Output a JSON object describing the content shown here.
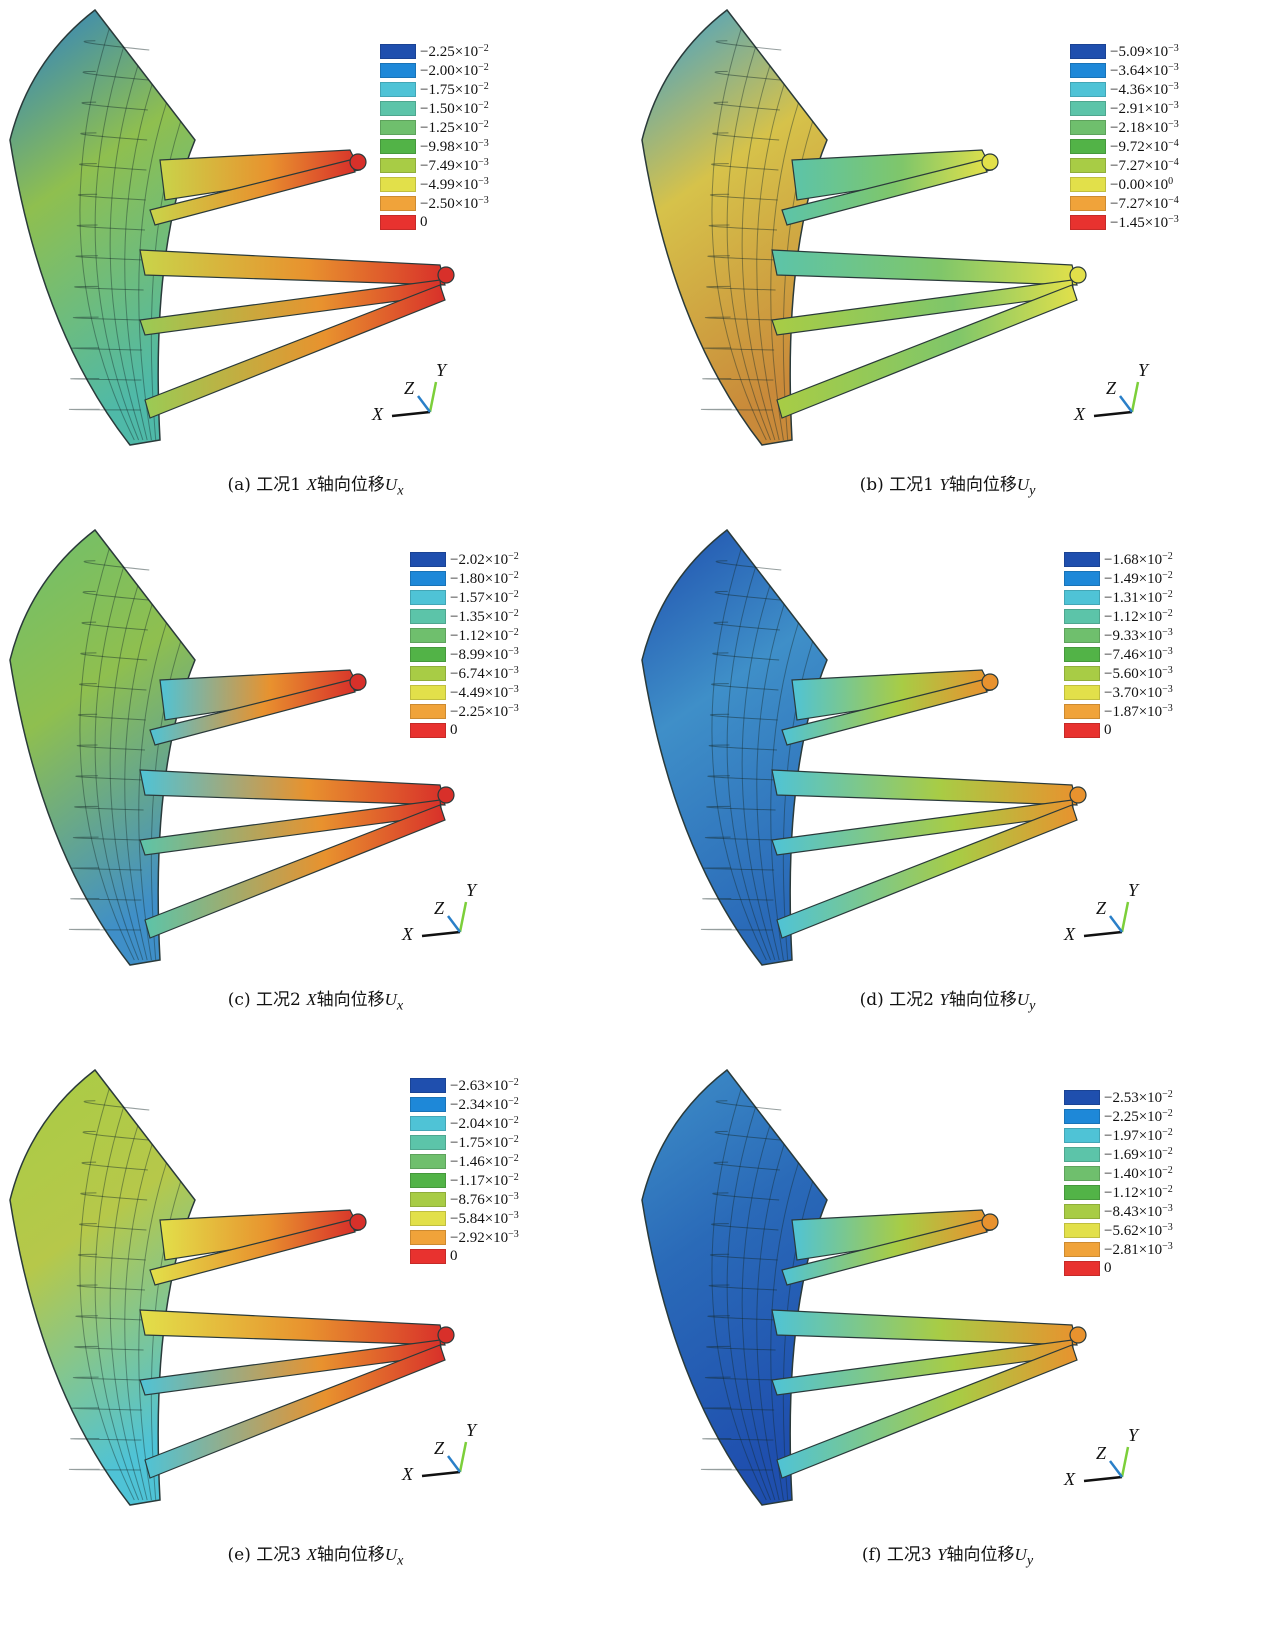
{
  "panels": [
    {
      "id": "a",
      "caption_prefix": "(a) 工况1 ",
      "caption_axis": "X",
      "caption_text": "轴向位移",
      "caption_sym": "U",
      "caption_sub": "x",
      "legend": [
        {
          "color": "#1f4fae",
          "label": "−2.25×10",
          "exp": "−2"
        },
        {
          "color": "#1e88d8",
          "label": "−2.00×10",
          "exp": "−2"
        },
        {
          "color": "#4fc3d6",
          "label": "−1.75×10",
          "exp": "−2"
        },
        {
          "color": "#5cc4a9",
          "label": "−1.50×10",
          "exp": "−2"
        },
        {
          "color": "#6fbf6d",
          "label": "−1.25×10",
          "exp": "−2"
        },
        {
          "color": "#52b347",
          "label": "−9.98×10",
          "exp": "−3"
        },
        {
          "color": "#a8cc45",
          "label": "−7.49×10",
          "exp": "−3"
        },
        {
          "color": "#e2e04a",
          "label": "−4.99×10",
          "exp": "−3"
        },
        {
          "color": "#f0a33a",
          "label": "−2.50×10",
          "exp": "−3"
        },
        {
          "color": "#e8322f",
          "label": "0",
          "exp": ""
        }
      ],
      "model_colors": {
        "shell": "#8fbf4f",
        "shell2": "#4fb9a8",
        "shell_top": "#2a7fc8",
        "arm_tip": "#d8302a",
        "arm_mid": "#e8922e",
        "arm_base": "#c9d44a",
        "arm_low": "#9acb55"
      },
      "triad": {
        "x": "X",
        "y": "Y",
        "z": "Z"
      }
    },
    {
      "id": "b",
      "caption_prefix": "(b) 工况1 ",
      "caption_axis": "Y",
      "caption_text": "轴向位移",
      "caption_sym": "U",
      "caption_sub": "y",
      "legend": [
        {
          "color": "#1f4fae",
          "label": "−5.09×10",
          "exp": "−3"
        },
        {
          "color": "#1e88d8",
          "label": "−3.64×10",
          "exp": "−3"
        },
        {
          "color": "#4fc3d6",
          "label": "−4.36×10",
          "exp": "−3"
        },
        {
          "color": "#5cc4a9",
          "label": "−2.91×10",
          "exp": "−3"
        },
        {
          "color": "#6fbf6d",
          "label": "−2.18×10",
          "exp": "−3"
        },
        {
          "color": "#52b347",
          "label": "−9.72×10",
          "exp": "−4"
        },
        {
          "color": "#a8cc45",
          "label": "−7.27×10",
          "exp": "−4"
        },
        {
          "color": "#e2e04a",
          "label": "−0.00×10",
          "exp": "0"
        },
        {
          "color": "#f0a33a",
          "label": "−7.27×10",
          "exp": "−4"
        },
        {
          "color": "#e8322f",
          "label": "−1.45×10",
          "exp": "−3"
        }
      ],
      "model_colors": {
        "shell": "#d6c24a",
        "shell2": "#c98a3a",
        "shell_top": "#3c9fd0",
        "arm_tip": "#e2e04a",
        "arm_mid": "#7fc66a",
        "arm_base": "#5cc4a9",
        "arm_low": "#a8cc45"
      },
      "triad": {
        "x": "X",
        "y": "Y",
        "z": "Z"
      }
    },
    {
      "id": "c",
      "caption_prefix": "(c) 工况2 ",
      "caption_axis": "X",
      "caption_text": "轴向位移",
      "caption_sym": "U",
      "caption_sub": "x",
      "legend": [
        {
          "color": "#1f4fae",
          "label": "−2.02×10",
          "exp": "−2"
        },
        {
          "color": "#1e88d8",
          "label": "−1.80×10",
          "exp": "−2"
        },
        {
          "color": "#4fc3d6",
          "label": "−1.57×10",
          "exp": "−2"
        },
        {
          "color": "#5cc4a9",
          "label": "−1.35×10",
          "exp": "−2"
        },
        {
          "color": "#6fbf6d",
          "label": "−1.12×10",
          "exp": "−2"
        },
        {
          "color": "#52b347",
          "label": "−8.99×10",
          "exp": "−3"
        },
        {
          "color": "#a8cc45",
          "label": "−6.74×10",
          "exp": "−3"
        },
        {
          "color": "#e2e04a",
          "label": "−4.49×10",
          "exp": "−3"
        },
        {
          "color": "#f0a33a",
          "label": "−2.25×10",
          "exp": "−3"
        },
        {
          "color": "#e8322f",
          "label": "0",
          "exp": ""
        }
      ],
      "model_colors": {
        "shell": "#8fbf4f",
        "shell2": "#3f8fc8",
        "shell_top": "#6fbf6d",
        "arm_tip": "#d8302a",
        "arm_mid": "#e8922e",
        "arm_base": "#4fc3d6",
        "arm_low": "#5cc4a9"
      },
      "triad": {
        "x": "X",
        "y": "Y",
        "z": "Z"
      }
    },
    {
      "id": "d",
      "caption_prefix": "(d) 工况2 ",
      "caption_axis": "Y",
      "caption_text": "轴向位移",
      "caption_sym": "U",
      "caption_sub": "y",
      "legend": [
        {
          "color": "#1f4fae",
          "label": "−1.68×10",
          "exp": "−2"
        },
        {
          "color": "#1e88d8",
          "label": "−1.49×10",
          "exp": "−2"
        },
        {
          "color": "#4fc3d6",
          "label": "−1.31×10",
          "exp": "−2"
        },
        {
          "color": "#5cc4a9",
          "label": "−1.12×10",
          "exp": "−2"
        },
        {
          "color": "#6fbf6d",
          "label": "−9.33×10",
          "exp": "−3"
        },
        {
          "color": "#52b347",
          "label": "−7.46×10",
          "exp": "−3"
        },
        {
          "color": "#a8cc45",
          "label": "−5.60×10",
          "exp": "−3"
        },
        {
          "color": "#e2e04a",
          "label": "−3.70×10",
          "exp": "−3"
        },
        {
          "color": "#f0a33a",
          "label": "−1.87×10",
          "exp": "−3"
        },
        {
          "color": "#e8322f",
          "label": "0",
          "exp": ""
        }
      ],
      "model_colors": {
        "shell": "#3f8fc8",
        "shell2": "#2a6ab8",
        "shell_top": "#1f4fae",
        "arm_tip": "#e8922e",
        "arm_mid": "#a8cc45",
        "arm_base": "#4fc3d6",
        "arm_low": "#4fc3d6"
      },
      "triad": {
        "x": "X",
        "y": "Y",
        "z": "Z"
      }
    },
    {
      "id": "e",
      "caption_prefix": "(e) 工况3 ",
      "caption_axis": "X",
      "caption_text": "轴向位移",
      "caption_sym": "U",
      "caption_sub": "x",
      "legend": [
        {
          "color": "#1f4fae",
          "label": "−2.63×10",
          "exp": "−2"
        },
        {
          "color": "#1e88d8",
          "label": "−2.34×10",
          "exp": "−2"
        },
        {
          "color": "#4fc3d6",
          "label": "−2.04×10",
          "exp": "−2"
        },
        {
          "color": "#5cc4a9",
          "label": "−1.75×10",
          "exp": "−2"
        },
        {
          "color": "#6fbf6d",
          "label": "−1.46×10",
          "exp": "−2"
        },
        {
          "color": "#52b347",
          "label": "−1.17×10",
          "exp": "−2"
        },
        {
          "color": "#a8cc45",
          "label": "−8.76×10",
          "exp": "−3"
        },
        {
          "color": "#e2e04a",
          "label": "−5.84×10",
          "exp": "−3"
        },
        {
          "color": "#f0a33a",
          "label": "−2.92×10",
          "exp": "−3"
        },
        {
          "color": "#e8322f",
          "label": "0",
          "exp": ""
        }
      ],
      "model_colors": {
        "shell": "#b6c84a",
        "shell2": "#4fc3d6",
        "shell_top": "#a8cc45",
        "arm_tip": "#d8302a",
        "arm_mid": "#e8922e",
        "arm_base": "#e2e04a",
        "arm_low": "#4fc3d6"
      },
      "triad": {
        "x": "X",
        "y": "Y",
        "z": "Z"
      }
    },
    {
      "id": "f",
      "caption_prefix": "(f) 工况3 ",
      "caption_axis": "Y",
      "caption_text": "轴向位移",
      "caption_sym": "U",
      "caption_sub": "y",
      "legend": [
        {
          "color": "#1f4fae",
          "label": "−2.53×10",
          "exp": "−2"
        },
        {
          "color": "#1e88d8",
          "label": "−2.25×10",
          "exp": "−2"
        },
        {
          "color": "#4fc3d6",
          "label": "−1.97×10",
          "exp": "−2"
        },
        {
          "color": "#5cc4a9",
          "label": "−1.69×10",
          "exp": "−2"
        },
        {
          "color": "#6fbf6d",
          "label": "−1.40×10",
          "exp": "−2"
        },
        {
          "color": "#52b347",
          "label": "−1.12×10",
          "exp": "−2"
        },
        {
          "color": "#a8cc45",
          "label": "−8.43×10",
          "exp": "−3"
        },
        {
          "color": "#e2e04a",
          "label": "−5.62×10",
          "exp": "−3"
        },
        {
          "color": "#f0a33a",
          "label": "−2.81×10",
          "exp": "−3"
        },
        {
          "color": "#e8322f",
          "label": "0",
          "exp": ""
        }
      ],
      "model_colors": {
        "shell": "#2a6ab8",
        "shell2": "#1f4fae",
        "shell_top": "#3f8fc8",
        "arm_tip": "#e8922e",
        "arm_mid": "#a8cc45",
        "arm_base": "#4fc3d6",
        "arm_low": "#4fc3d6"
      },
      "triad": {
        "x": "X",
        "y": "Y",
        "z": "Z"
      }
    }
  ]
}
